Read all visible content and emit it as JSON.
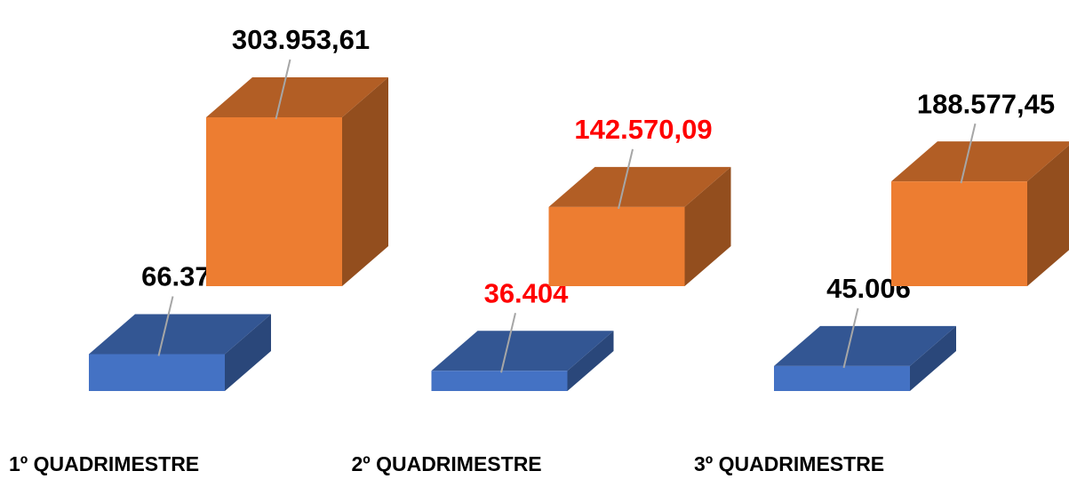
{
  "chart_data": {
    "type": "bar3d",
    "categories": [
      "1º QUADRIMESTRE",
      "2º QUADRIMESTRE",
      "3º QUADRIMESTRE"
    ],
    "series": [
      {
        "color": "#4472c4",
        "values": [
          66370,
          36404,
          45006
        ],
        "value_labels": [
          "66.370",
          "36.404",
          "45.006"
        ],
        "label_colors": [
          "#000000",
          "#ff0000",
          "#000000"
        ]
      },
      {
        "color": "#ed7d31",
        "values": [
          303953.61,
          142570.09,
          188577.45
        ],
        "value_labels": [
          "303.953,61",
          "142.570,09",
          "188.577,45"
        ],
        "label_colors": [
          "#000000",
          "#ff0000",
          "#000000"
        ]
      }
    ]
  }
}
